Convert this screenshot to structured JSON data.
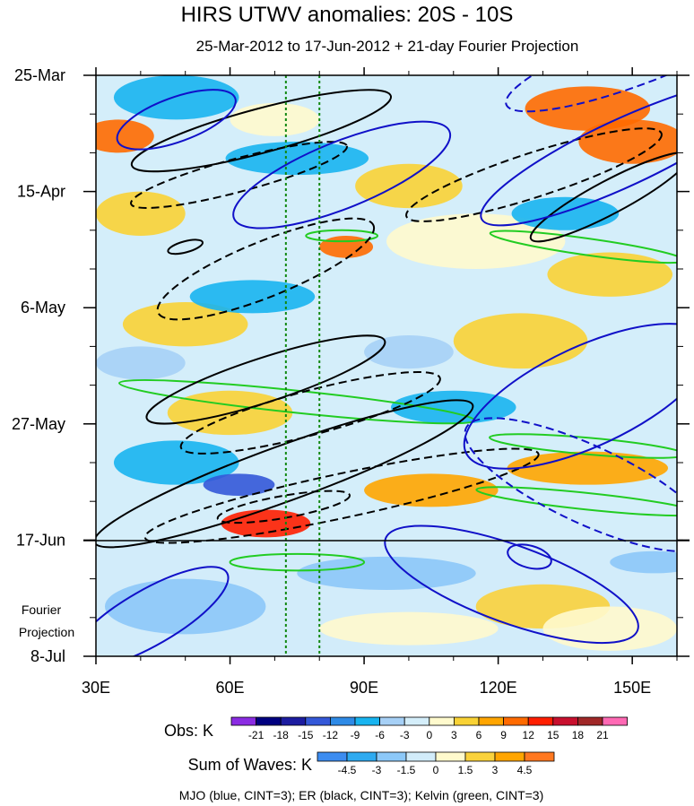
{
  "chart_data": {
    "type": "heatmap",
    "title": "HIRS UTWV anomalies: 20S - 10S",
    "subtitle": "25-Mar-2012 to 17-Jun-2012 + 21-day Fourier Projection",
    "x_ticks": [
      {
        "label": "30E",
        "value": 30
      },
      {
        "label": "60E",
        "value": 60
      },
      {
        "label": "90E",
        "value": 90
      },
      {
        "label": "120E",
        "value": 120
      },
      {
        "label": "150E",
        "value": 150
      }
    ],
    "x_range": [
      30,
      160
    ],
    "y_ticks": [
      {
        "label": "25-Mar",
        "day": 0
      },
      {
        "label": "15-Apr",
        "day": 21
      },
      {
        "label": "6-May",
        "day": 42
      },
      {
        "label": "27-May",
        "day": 63
      },
      {
        "label": "17-Jun",
        "day": 84
      },
      {
        "label": "8-Jul",
        "day": 105
      }
    ],
    "y_range_days": [
      0,
      105
    ],
    "projection_start_day": 84,
    "projection_label_line1": "Fourier",
    "projection_label_line2": "Projection",
    "vertical_lines_lon": [
      72.5,
      80
    ],
    "obs_colorbar": {
      "label": "Obs: K",
      "levels": [
        "-21",
        "-18",
        "-15",
        "-12",
        "-9",
        "-6",
        "-3",
        "0",
        "3",
        "6",
        "9",
        "12",
        "15",
        "18",
        "21"
      ],
      "colors": [
        "#8a2be2",
        "#000080",
        "#1c1ca0",
        "#3458d8",
        "#2e8ae6",
        "#18b4f0",
        "#a6d0f6",
        "#d4eefa",
        "#fffacd",
        "#f9d235",
        "#ffa500",
        "#ff6a00",
        "#ff1e00",
        "#c8102e",
        "#a02828",
        "#ff69b4"
      ]
    },
    "waves_colorbar": {
      "label": "Sum of Waves: K",
      "levels": [
        "-4.5",
        "-3",
        "-1.5",
        "0",
        "1.5",
        "3",
        "4.5"
      ],
      "colors": [
        "#3c8cf0",
        "#2eaaf0",
        "#8cc8f8",
        "#d2ecfa",
        "#fffacd",
        "#fad23c",
        "#ffa500",
        "#ff7820"
      ]
    },
    "footer": "MJO (blue, CINT=3); ER (black, CINT=3); Kelvin (green, CINT=3)",
    "mjo_contours": [
      {
        "lon": 48,
        "day": 8,
        "rx": 14,
        "ry": 4,
        "rot": -20,
        "dashed": false
      },
      {
        "lon": 85,
        "day": 18,
        "rx": 26,
        "ry": 6,
        "rot": -22,
        "dashed": false
      },
      {
        "lon": 148,
        "day": 14,
        "rx": 35,
        "ry": 6,
        "rot": -25,
        "dashed": false
      },
      {
        "lon": 140,
        "day": 58,
        "rx": 30,
        "ry": 9,
        "rot": -25,
        "dashed": false
      },
      {
        "lon": 140,
        "day": 74,
        "rx": 30,
        "ry": 7,
        "rot": 25,
        "dashed": true
      },
      {
        "lon": 123,
        "day": 92,
        "rx": 30,
        "ry": 7,
        "rot": 20,
        "dashed": false
      },
      {
        "lon": 127,
        "day": 87,
        "rx": 5,
        "ry": 2,
        "rot": 15,
        "dashed": false
      },
      {
        "lon": 42,
        "day": 98,
        "rx": 20,
        "ry": 5,
        "rot": -30,
        "dashed": false
      },
      {
        "lon": 150,
        "day": -3,
        "rx": 30,
        "ry": 5,
        "rot": -20,
        "dashed": true
      }
    ],
    "er_contours": [
      {
        "lon": 67,
        "day": 10,
        "rx": 30,
        "ry": 4,
        "rot": -15,
        "dashed": false
      },
      {
        "lon": 62,
        "day": 18,
        "rx": 25,
        "ry": 3,
        "rot": -15,
        "dashed": true
      },
      {
        "lon": 68,
        "day": 35,
        "rx": 26,
        "ry": 5,
        "rot": -22,
        "dashed": true
      },
      {
        "lon": 68,
        "day": 55,
        "rx": 28,
        "ry": 4,
        "rot": -18,
        "dashed": false
      },
      {
        "lon": 78,
        "day": 61,
        "rx": 30,
        "ry": 4,
        "rot": -15,
        "dashed": true
      },
      {
        "lon": 72,
        "day": 72,
        "rx": 45,
        "ry": 5,
        "rot": -20,
        "dashed": false
      },
      {
        "lon": 85,
        "day": 76,
        "rx": 45,
        "ry": 4,
        "rot": -12,
        "dashed": true
      },
      {
        "lon": 72,
        "day": 78,
        "rx": 15,
        "ry": 2,
        "rot": -10,
        "dashed": true
      },
      {
        "lon": 128,
        "day": 18,
        "rx": 30,
        "ry": 4,
        "rot": -18,
        "dashed": true
      },
      {
        "lon": 145,
        "day": 22,
        "rx": 20,
        "ry": 3,
        "rot": -28,
        "dashed": false
      },
      {
        "lon": 50,
        "day": 31,
        "rx": 4,
        "ry": 1,
        "rot": -15,
        "dashed": false
      }
    ],
    "kelvin_contours": [
      {
        "lon": 75,
        "day": 59,
        "rx": 40,
        "ry": 2,
        "rot": 6,
        "dashed": false
      },
      {
        "lon": 140,
        "day": 31,
        "rx": 22,
        "ry": 1.5,
        "rot": 8,
        "dashed": false
      },
      {
        "lon": 140,
        "day": 77,
        "rx": 25,
        "ry": 1.5,
        "rot": 6,
        "dashed": false
      },
      {
        "lon": 140,
        "day": 67,
        "rx": 22,
        "ry": 1.5,
        "rot": 5,
        "dashed": false
      },
      {
        "lon": 75,
        "day": 88,
        "rx": 15,
        "ry": 1.5,
        "rot": 0,
        "dashed": false
      },
      {
        "lon": 85,
        "day": 29,
        "rx": 8,
        "ry": 1,
        "rot": 0,
        "dashed": false
      }
    ],
    "obs_blobs": [
      {
        "lon": 35,
        "day": 11,
        "rx": 8,
        "ry": 3,
        "level": 12
      },
      {
        "lon": 68,
        "day": 81,
        "rx": 10,
        "ry": 2.5,
        "level": 15
      },
      {
        "lon": 140,
        "day": 6,
        "rx": 14,
        "ry": 4,
        "level": 12
      },
      {
        "lon": 150,
        "day": 12,
        "rx": 12,
        "ry": 4,
        "level": 12
      },
      {
        "lon": 86,
        "day": 31,
        "rx": 6,
        "ry": 2,
        "level": 12
      },
      {
        "lon": 140,
        "day": 71,
        "rx": 18,
        "ry": 3,
        "level": 9
      },
      {
        "lon": 105,
        "day": 75,
        "rx": 15,
        "ry": 3,
        "level": 9
      },
      {
        "lon": 60,
        "day": 61,
        "rx": 14,
        "ry": 4,
        "level": 6
      },
      {
        "lon": 125,
        "day": 48,
        "rx": 15,
        "ry": 5,
        "level": 6
      },
      {
        "lon": 40,
        "day": 25,
        "rx": 10,
        "ry": 4,
        "level": 6
      },
      {
        "lon": 100,
        "day": 20,
        "rx": 12,
        "ry": 4,
        "level": 6
      },
      {
        "lon": 145,
        "day": 36,
        "rx": 14,
        "ry": 4,
        "level": 6
      },
      {
        "lon": 50,
        "day": 45,
        "rx": 14,
        "ry": 4,
        "level": 6
      },
      {
        "lon": 70,
        "day": 8,
        "rx": 10,
        "ry": 3,
        "level": 3
      },
      {
        "lon": 115,
        "day": 30,
        "rx": 20,
        "ry": 5,
        "level": 3
      },
      {
        "lon": 48,
        "day": 70,
        "rx": 14,
        "ry": 4,
        "level": -6
      },
      {
        "lon": 62,
        "day": 74,
        "rx": 8,
        "ry": 2,
        "level": -12
      },
      {
        "lon": 48,
        "day": 4,
        "rx": 14,
        "ry": 4,
        "level": -6
      },
      {
        "lon": 75,
        "day": 15,
        "rx": 16,
        "ry": 3,
        "level": -6
      },
      {
        "lon": 65,
        "day": 40,
        "rx": 14,
        "ry": 3,
        "level": -6
      },
      {
        "lon": 110,
        "day": 60,
        "rx": 14,
        "ry": 3,
        "level": -6
      },
      {
        "lon": 135,
        "day": 25,
        "rx": 12,
        "ry": 3,
        "level": -6
      },
      {
        "lon": 100,
        "day": 50,
        "rx": 10,
        "ry": 3,
        "level": -3
      },
      {
        "lon": 40,
        "day": 52,
        "rx": 10,
        "ry": 3,
        "level": -3
      }
    ],
    "waves_blobs": [
      {
        "lon": 130,
        "day": 96,
        "rx": 15,
        "ry": 4,
        "level": 3
      },
      {
        "lon": 100,
        "day": 100,
        "rx": 20,
        "ry": 3,
        "level": 1.5
      },
      {
        "lon": 145,
        "day": 100,
        "rx": 15,
        "ry": 4,
        "level": 1.5
      },
      {
        "lon": 50,
        "day": 96,
        "rx": 18,
        "ry": 5,
        "level": -1.5
      },
      {
        "lon": 95,
        "day": 90,
        "rx": 20,
        "ry": 3,
        "level": -1.5
      },
      {
        "lon": 155,
        "day": 88,
        "rx": 10,
        "ry": 2,
        "level": -1.5
      }
    ]
  }
}
